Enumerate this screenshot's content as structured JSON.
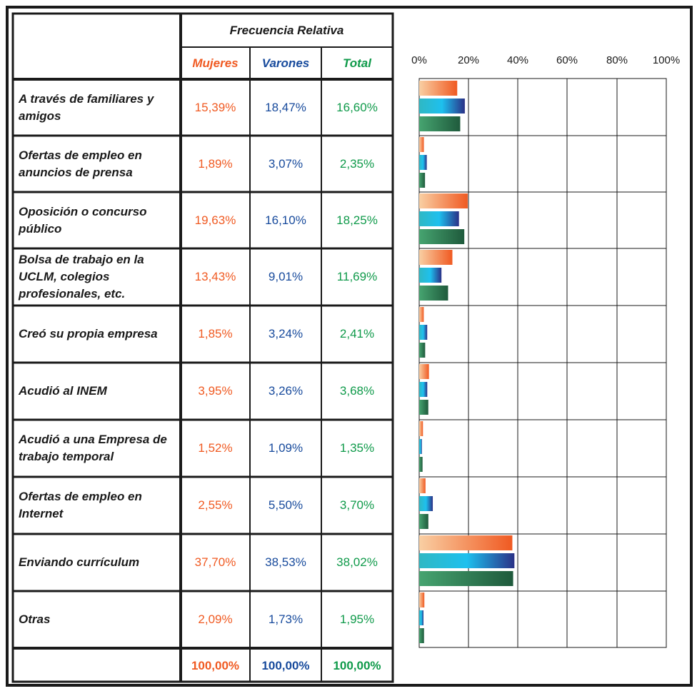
{
  "header": {
    "group_title": "Frecuencia Relativa",
    "columns": [
      "Mujeres",
      "Varones",
      "Total"
    ]
  },
  "rows": [
    {
      "label": "A través de familiares y amigos",
      "mujeres": "15,39%",
      "varones": "18,47%",
      "total": "16,60%"
    },
    {
      "label": "Ofertas de empleo en anuncios de prensa",
      "mujeres": "1,89%",
      "varones": "3,07%",
      "total": "2,35%"
    },
    {
      "label": "Oposición o concurso público",
      "mujeres": "19,63%",
      "varones": "16,10%",
      "total": "18,25%"
    },
    {
      "label": "Bolsa de trabajo en la UCLM, colegios profesionales, etc.",
      "mujeres": "13,43%",
      "varones": "9,01%",
      "total": "11,69%"
    },
    {
      "label": "Creó su propia empresa",
      "mujeres": "1,85%",
      "varones": "3,24%",
      "total": "2,41%"
    },
    {
      "label": "Acudió al INEM",
      "mujeres": "3,95%",
      "varones": "3,26%",
      "total": "3,68%"
    },
    {
      "label": "Acudió a una Empresa de trabajo temporal",
      "mujeres": "1,52%",
      "varones": "1,09%",
      "total": "1,35%"
    },
    {
      "label": "Ofertas de empleo en Internet",
      "mujeres": "2,55%",
      "varones": "5,50%",
      "total": "3,70%"
    },
    {
      "label": "Enviando currículum",
      "mujeres": "37,70%",
      "varones": "38,53%",
      "total": "38,02%"
    },
    {
      "label": "Otras",
      "mujeres": "2,09%",
      "varones": "1,73%",
      "total": "1,95%"
    }
  ],
  "totals": {
    "mujeres": "100,00%",
    "varones": "100,00%",
    "total": "100,00%"
  },
  "colors": {
    "mujeres_text": "#f05a22",
    "varones_text": "#174a9c",
    "total_text": "#0f9a4a",
    "mujeres_bar": [
      "#f9cfa3",
      "#f05a22"
    ],
    "varones_bar": [
      "#2fb8c4",
      "#1ec0ee",
      "#2a3187"
    ],
    "total_bar": [
      "#46a470",
      "#1f5a3c"
    ],
    "border": "#1a1a1a"
  },
  "chart_data": {
    "type": "bar",
    "orientation": "horizontal",
    "categories": [
      "A través de familiares y amigos",
      "Ofertas de empleo en anuncios de prensa",
      "Oposición o concurso público",
      "Bolsa de trabajo en la UCLM, colegios profesionales, etc.",
      "Creó su propia empresa",
      "Acudió al INEM",
      "Acudió a una Empresa de trabajo temporal",
      "Ofertas de empleo en Internet",
      "Enviando currículum",
      "Otras"
    ],
    "series": [
      {
        "name": "Mujeres",
        "values": [
          15.39,
          1.89,
          19.63,
          13.43,
          1.85,
          3.95,
          1.52,
          2.55,
          37.7,
          2.09
        ]
      },
      {
        "name": "Varones",
        "values": [
          18.47,
          3.07,
          16.1,
          9.01,
          3.24,
          3.26,
          1.09,
          5.5,
          38.53,
          1.73
        ]
      },
      {
        "name": "Total",
        "values": [
          16.6,
          2.35,
          18.25,
          11.69,
          2.41,
          3.68,
          1.35,
          3.7,
          38.02,
          1.95
        ]
      }
    ],
    "xlim": [
      0,
      100
    ],
    "ticks": [
      "0%",
      "20%",
      "40%",
      "60%",
      "80%",
      "100%"
    ],
    "grid": true,
    "legend": "none"
  }
}
